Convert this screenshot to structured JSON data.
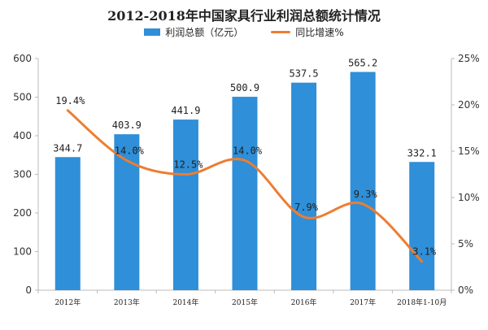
{
  "chart_data": {
    "type": "bar",
    "title": "2012-2018年中国家具行业利润总额统计情况",
    "categories": [
      "2012年",
      "2013年",
      "2014年",
      "2015年",
      "2016年",
      "2017年",
      "2018年1-10月"
    ],
    "series": [
      {
        "name": "利润总额（亿元）",
        "type": "bar",
        "axis": "left",
        "color": "#2f8fd8",
        "values": [
          344.7,
          403.9,
          441.9,
          500.9,
          537.5,
          565.2,
          332.1
        ],
        "labels": [
          "344.7",
          "403.9",
          "441.9",
          "500.9",
          "537.5",
          "565.2",
          "332.1"
        ]
      },
      {
        "name": "同比增速%",
        "type": "line",
        "axis": "right",
        "color": "#ed7d31",
        "values": [
          19.4,
          14.0,
          12.5,
          14.0,
          7.9,
          9.3,
          3.1
        ],
        "labels": [
          "19.4%",
          "14.0%",
          "12.5%",
          "14.0%",
          "7.9%",
          "9.3%",
          "3.1%"
        ]
      }
    ],
    "y_left": {
      "min": 0,
      "max": 600,
      "ticks": [
        "0",
        "100",
        "200",
        "300",
        "400",
        "500",
        "600"
      ]
    },
    "y_right": {
      "min": 0,
      "max": 25,
      "ticks": [
        "0%",
        "5%",
        "10%",
        "15%",
        "20%",
        "25%"
      ]
    },
    "grid": false,
    "legend_position": "top-center"
  }
}
